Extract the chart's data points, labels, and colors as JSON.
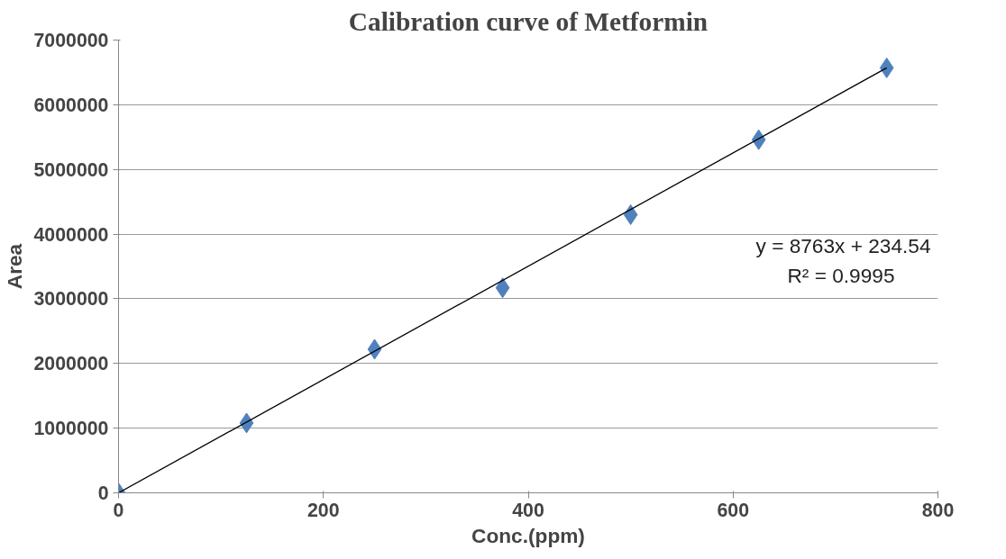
{
  "chart_data": {
    "type": "scatter",
    "title": "Calibration curve of Metformin",
    "xlabel": "Conc.(ppm)",
    "ylabel": "Area",
    "xlim": [
      0,
      800
    ],
    "xticks": [
      0,
      200,
      400,
      600,
      800
    ],
    "ylim": [
      0,
      7000000
    ],
    "yticks": [
      0,
      1000000,
      2000000,
      3000000,
      4000000,
      5000000,
      6000000,
      7000000
    ],
    "grid": "y",
    "marker": "diamond",
    "series": [
      {
        "color": "#4f81bd",
        "x": [
          0,
          125,
          250,
          375,
          500,
          625,
          750
        ],
        "values": [
          0,
          1080000,
          2220000,
          3170000,
          4300000,
          5460000,
          6570000
        ]
      },
      {
        "type": "line",
        "color": "#000000",
        "marker": "none",
        "x": [
          0,
          750
        ],
        "values": [
          0,
          6570000
        ]
      }
    ],
    "annotations": [
      "y = 8763x + 234.54",
      "R² = 0.9995"
    ]
  }
}
